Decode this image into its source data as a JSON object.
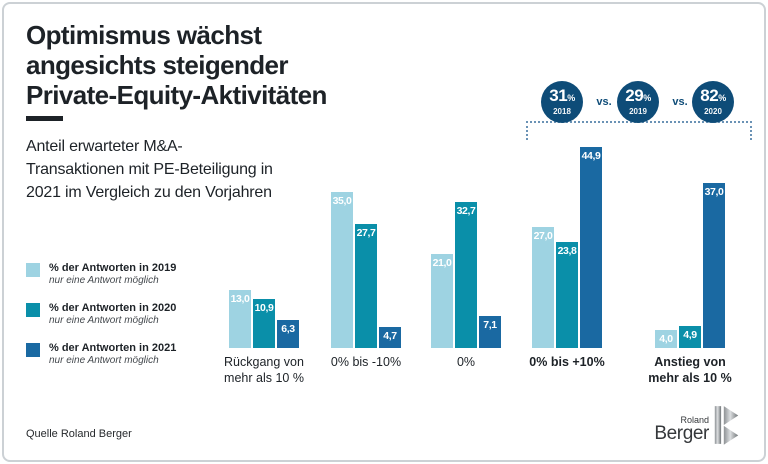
{
  "header": {
    "title_lines": [
      "Optimismus wächst",
      "angesichts steigender",
      "Private-Equity-Aktivitäten"
    ],
    "subtitle_lines": [
      "Anteil erwarteter M&A-",
      "Transaktionen mit PE-Beteiligung in",
      "2021 im Vergleich zu den Vorjahren"
    ]
  },
  "comparison": {
    "separator": "vs.",
    "items": [
      {
        "value": "31",
        "unit": "%",
        "year": "2018"
      },
      {
        "value": "29",
        "unit": "%",
        "year": "2019"
      },
      {
        "value": "82",
        "unit": "%",
        "year": "2020"
      }
    ]
  },
  "chart_data": {
    "type": "bar",
    "title": "Anteil erwarteter M&A-Transaktionen mit PE-Beteiligung in 2021 im Vergleich zu den Vorjahren",
    "categories": [
      "Rückgang von\nmehr als 10 %",
      "0% bis -10%",
      "0%",
      "0% bis +10%",
      "Anstieg von\nmehr als 10 %"
    ],
    "categories_emphasis": [
      false,
      false,
      false,
      true,
      true
    ],
    "series": [
      {
        "name": "% der Antworten in 2019",
        "note": "nur eine Antwort möglich",
        "color": "#9ed3e2",
        "values": [
          13.0,
          35.0,
          21.0,
          27.0,
          4.0
        ]
      },
      {
        "name": "% der Antworten in 2020",
        "note": "nur eine Antwort möglich",
        "color": "#0a8fa9",
        "values": [
          10.9,
          27.7,
          32.7,
          23.8,
          4.9
        ]
      },
      {
        "name": "% der Antworten in 2021",
        "note": "nur eine Antwort möglich",
        "color": "#1a69a2",
        "values": [
          6.3,
          4.7,
          7.1,
          44.9,
          37.0
        ]
      }
    ],
    "value_label_decimal": ",",
    "ylim": [
      0,
      47
    ],
    "grid": false,
    "legend_position": "left"
  },
  "footer": {
    "source": "Quelle Roland Berger",
    "logo_top": "Roland",
    "logo_bottom": "Berger"
  },
  "colors": {
    "text": "#1d2227",
    "bar_2019": "#9ed3e2",
    "bar_2020": "#0a8fa9",
    "bar_2021": "#1a69a2",
    "circle_navy": "#0e4c78",
    "dotted_line": "#6a92b5"
  }
}
